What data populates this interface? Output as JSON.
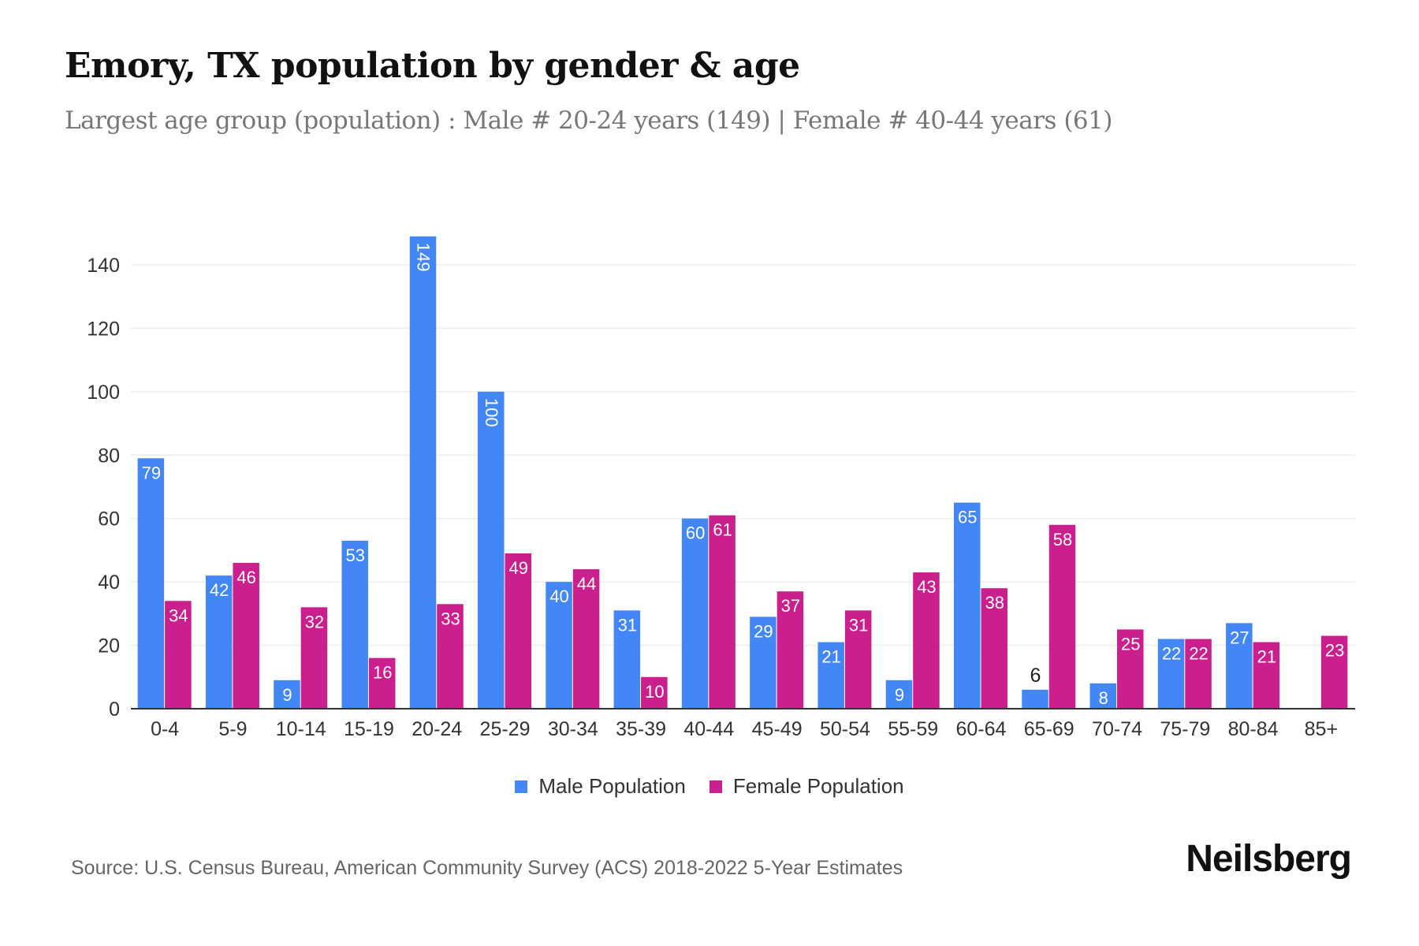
{
  "title": "Emory, TX population by gender & age",
  "subtitle": "Largest age group (population) : Male # 20-24 years (149) | Female # 40-44 years (61)",
  "source": "Source: U.S. Census Bureau, American Community Survey (ACS) 2018-2022 5-Year Estimates",
  "logo": "Neilsberg",
  "chart_data": {
    "type": "bar",
    "categories": [
      "0-4",
      "5-9",
      "10-14",
      "15-19",
      "20-24",
      "25-29",
      "30-34",
      "35-39",
      "40-44",
      "45-49",
      "50-54",
      "55-59",
      "60-64",
      "65-69",
      "70-74",
      "75-79",
      "80-84",
      "85+"
    ],
    "series": [
      {
        "name": "Male Population",
        "color": "#4287f5",
        "values": [
          79,
          42,
          9,
          53,
          149,
          100,
          40,
          31,
          60,
          29,
          21,
          9,
          65,
          6,
          8,
          22,
          27,
          null
        ]
      },
      {
        "name": "Female Population",
        "color": "#cc1f8e",
        "values": [
          34,
          46,
          32,
          16,
          33,
          49,
          44,
          10,
          61,
          37,
          31,
          43,
          38,
          58,
          25,
          22,
          21,
          23
        ]
      }
    ],
    "yticks": [
      0,
      20,
      40,
      60,
      80,
      100,
      120,
      140
    ],
    "ylim": [
      0,
      150
    ],
    "grid": true,
    "legend": "bottom",
    "xlabel": "",
    "ylabel": ""
  }
}
